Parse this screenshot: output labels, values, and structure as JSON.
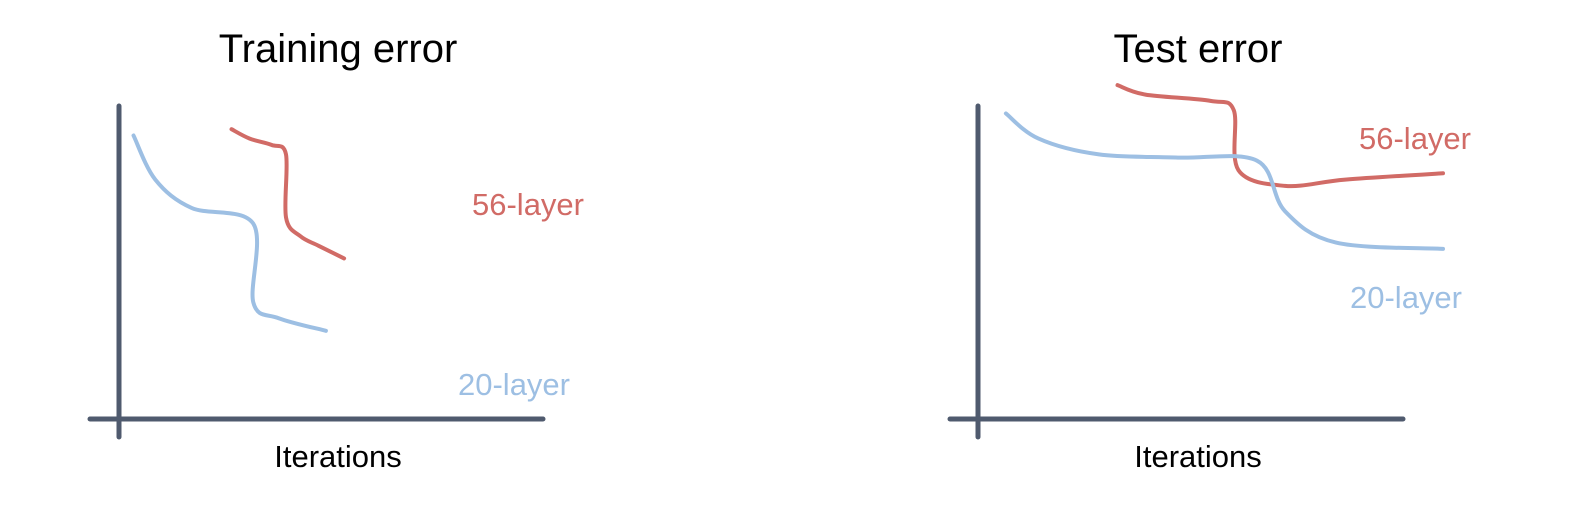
{
  "chart_data": [
    {
      "type": "line",
      "title": "Training error",
      "xlabel": "Iterations",
      "ylabel": "",
      "series": [
        {
          "name": "56-layer",
          "color": "#d16b66",
          "points": [
            [
              0.31,
              0.92
            ],
            [
              0.36,
              0.89
            ],
            [
              0.42,
              0.87
            ],
            [
              0.46,
              0.84
            ],
            [
              0.46,
              0.64
            ],
            [
              0.5,
              0.58
            ],
            [
              0.55,
              0.55
            ],
            [
              0.62,
              0.51
            ]
          ]
        },
        {
          "name": "20-layer",
          "color": "#9dbfe3",
          "points": [
            [
              0.04,
              0.9
            ],
            [
              0.1,
              0.76
            ],
            [
              0.2,
              0.67
            ],
            [
              0.37,
              0.62
            ],
            [
              0.37,
              0.37
            ],
            [
              0.44,
              0.32
            ],
            [
              0.57,
              0.28
            ]
          ]
        }
      ]
    },
    {
      "type": "line",
      "title": "Test error",
      "xlabel": "Iterations",
      "ylabel": "",
      "series": [
        {
          "name": "56-layer",
          "color": "#d16b66",
          "points": [
            [
              0.3,
              1.06
            ],
            [
              0.36,
              1.03
            ],
            [
              0.5,
              1.01
            ],
            [
              0.55,
              0.98
            ],
            [
              0.56,
              0.79
            ],
            [
              0.66,
              0.74
            ],
            [
              0.79,
              0.76
            ],
            [
              1.0,
              0.78
            ]
          ]
        },
        {
          "name": "20-layer",
          "color": "#9dbfe3",
          "points": [
            [
              0.06,
              0.97
            ],
            [
              0.13,
              0.89
            ],
            [
              0.26,
              0.84
            ],
            [
              0.43,
              0.83
            ],
            [
              0.6,
              0.82
            ],
            [
              0.66,
              0.66
            ],
            [
              0.77,
              0.56
            ],
            [
              1.0,
              0.54
            ]
          ]
        }
      ]
    }
  ]
}
